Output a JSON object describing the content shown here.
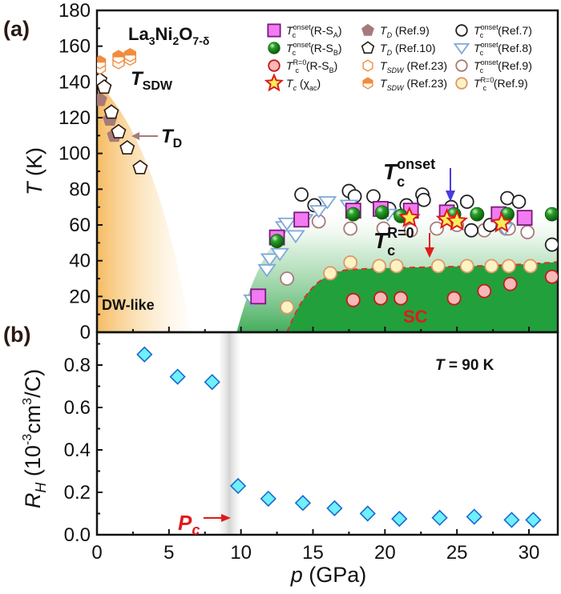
{
  "chart_data": [
    {
      "panel": "(a)",
      "type": "scatter",
      "title": "La3Ni2O7-δ",
      "xlabel": "p (GPa)",
      "ylabel": "T (K)",
      "xlim": [
        0,
        32
      ],
      "ylim": [
        0,
        180
      ],
      "yticks": [
        0,
        20,
        40,
        60,
        80,
        100,
        120,
        140,
        160,
        180
      ],
      "xticks_minor": [
        0,
        5,
        10,
        15,
        20,
        25,
        30
      ],
      "grid": false,
      "legend_placement": "top-right",
      "annotations": {
        "compound": "La",
        "compound_sub1": "3",
        "compound_mid": "Ni",
        "compound_sub2": "2",
        "compound_mid2": "O",
        "compound_sub3": "7-δ",
        "tsdw": "T",
        "tsdw_sub": "SDW",
        "td": "T",
        "td_sub": "D",
        "tc_onset": "T",
        "tc_onset_sub": "c",
        "tc_onset_sup": "onset",
        "tc_r0": "T",
        "tc_r0_sub": "c",
        "tc_r0_sup": "R=0",
        "dw_like": "DW-like",
        "sc": "SC"
      },
      "regions": [
        {
          "name": "DW-like",
          "color": "#f7c36b"
        },
        {
          "name": "SC-onset",
          "color": "#2ea043"
        },
        {
          "name": "SC",
          "color": "#22a03c"
        }
      ],
      "series": [
        {
          "name": "Tc onset (R-SA)",
          "marker": "square",
          "fill": "#f27af2",
          "stroke": "#7a1a7a",
          "points": [
            [
              11.2,
              20
            ],
            [
              12.5,
              53
            ],
            [
              14.2,
              63
            ],
            [
              17.8,
              68
            ],
            [
              19.7,
              69
            ],
            [
              21.8,
              68
            ],
            [
              24.3,
              67
            ],
            [
              27.9,
              66
            ],
            [
              29.7,
              64
            ]
          ]
        },
        {
          "name": "Tc onset (R-SB)",
          "marker": "ball",
          "fill": "#1a8a1a",
          "stroke": "#0d5a0d",
          "points": [
            [
              12.5,
              51
            ],
            [
              17.8,
              66
            ],
            [
              19.8,
              67
            ],
            [
              21.1,
              65
            ],
            [
              24.8,
              66
            ],
            [
              26.4,
              66
            ],
            [
              28.5,
              66
            ],
            [
              31.6,
              66
            ]
          ]
        },
        {
          "name": "Tc R=0 (R-SB)",
          "marker": "circle",
          "fill": "#f7b8b8",
          "stroke": "#c21a1a",
          "points": [
            [
              17.8,
              18
            ],
            [
              19.7,
              19
            ],
            [
              21.1,
              19
            ],
            [
              24.8,
              19
            ],
            [
              26.9,
              23
            ],
            [
              28.7,
              27
            ],
            [
              31.6,
              31
            ]
          ]
        },
        {
          "name": "Tc (χac)",
          "marker": "star",
          "fill": "#f5ef5a",
          "stroke": "#e01a1a",
          "points": [
            [
              21.7,
              64
            ],
            [
              24.3,
              63
            ],
            [
              25.0,
              62
            ],
            [
              28.1,
              61
            ]
          ]
        },
        {
          "name": "TD (Ref.9)",
          "marker": "pentagon-filled",
          "fill": "#a77a78",
          "stroke": "#a77a78",
          "points": [
            [
              0.2,
              130
            ],
            [
              0.9,
              119
            ],
            [
              1.2,
              110
            ]
          ]
        },
        {
          "name": "TD (Ref.10)",
          "marker": "pentagon-open",
          "fill": "#ffffff",
          "stroke": "#2b1a10",
          "points": [
            [
              0.2,
              141
            ],
            [
              0.5,
              137
            ],
            [
              1.0,
              123
            ],
            [
              1.5,
              112
            ],
            [
              2.1,
              103
            ],
            [
              3.0,
              92
            ]
          ]
        },
        {
          "name": "TSDW (Ref.23) open",
          "marker": "hexagon-open",
          "fill": "#ffffff",
          "stroke": "#f28c3c",
          "points": [
            [
              0.2,
              148
            ],
            [
              1.5,
              151
            ],
            [
              2.3,
              153
            ]
          ]
        },
        {
          "name": "TSDW (Ref.23) half",
          "marker": "hexagon-half",
          "fill": "#f28c3c",
          "stroke": "#f28c3c",
          "points": [
            [
              0.2,
              151
            ],
            [
              1.5,
              154
            ],
            [
              2.3,
              155
            ]
          ]
        },
        {
          "name": "Tc onset (Ref.7)",
          "marker": "circle",
          "fill": "#ffffff",
          "stroke": "#222222",
          "points": [
            [
              14.2,
              77
            ],
            [
              15.1,
              71
            ],
            [
              17.5,
              79
            ],
            [
              17.9,
              76
            ],
            [
              19.2,
              76
            ],
            [
              20.3,
              69
            ],
            [
              21.5,
              71
            ],
            [
              22.6,
              77
            ],
            [
              22.7,
              74
            ],
            [
              24.6,
              70
            ],
            [
              25.7,
              73
            ],
            [
              26.0,
              57
            ],
            [
              27.3,
              60
            ],
            [
              28.5,
              75
            ],
            [
              29.3,
              73
            ],
            [
              31.6,
              49
            ]
          ]
        },
        {
          "name": "Tc onset (Ref.8)",
          "marker": "triangle-down",
          "fill": "#ffffff",
          "stroke": "#7fa8d8",
          "points": [
            [
              10.8,
              18
            ],
            [
              11.8,
              35
            ],
            [
              12.0,
              41
            ],
            [
              12.7,
              44
            ],
            [
              13.8,
              54
            ],
            [
              13.0,
              59
            ],
            [
              13.2,
              61
            ],
            [
              14.4,
              63
            ],
            [
              15.4,
              68
            ],
            [
              16.0,
              73
            ],
            [
              17.5,
              71
            ],
            [
              20.2,
              66
            ],
            [
              28.3,
              58
            ]
          ]
        },
        {
          "name": "Tc onset (Ref.9)",
          "marker": "circle",
          "fill": "#ffffff",
          "stroke": "#a87a78",
          "points": [
            [
              13.2,
              30
            ],
            [
              15.4,
              62
            ],
            [
              17.6,
              58
            ],
            [
              19.9,
              58
            ],
            [
              21.8,
              57
            ],
            [
              23.6,
              58
            ],
            [
              25.0,
              60
            ],
            [
              26.9,
              57
            ],
            [
              28.4,
              58
            ],
            [
              29.9,
              56
            ],
            [
              28.6,
              58
            ]
          ]
        },
        {
          "name": "Tc R=0 (Ref.9)",
          "marker": "circle",
          "fill": "#fdf3c2",
          "stroke": "#e0956a",
          "points": [
            [
              13.2,
              14
            ],
            [
              16.2,
              33
            ],
            [
              17.6,
              39
            ],
            [
              19.6,
              37
            ],
            [
              20.8,
              37
            ],
            [
              23.7,
              37
            ],
            [
              25.7,
              37
            ],
            [
              27.4,
              37
            ],
            [
              28.6,
              37
            ],
            [
              30.1,
              37
            ]
          ]
        }
      ],
      "legend": [
        {
          "main": "T",
          "sub": "c",
          "sup": "onset",
          "tail": "(R-S",
          "tail_sub": "A",
          "tail_end": ")"
        },
        {
          "main": "T",
          "sub": "c",
          "sup": "onset",
          "tail": "(R-S",
          "tail_sub": "B",
          "tail_end": ")"
        },
        {
          "main": "T",
          "sub": "c",
          "sup": "R=0",
          "tail": "(R-S",
          "tail_sub": "B",
          "tail_end": ")"
        },
        {
          "main": "T",
          "sub": "c",
          "sup": "",
          "tail": " (χ",
          "tail_sub": "ac",
          "tail_end": ")"
        },
        {
          "main": "T",
          "sub": "D",
          "sup": "",
          "tail": " (Ref.9)",
          "tail_sub": "",
          "tail_end": ""
        },
        {
          "main": "T",
          "sub": "D",
          "sup": "",
          "tail": " (Ref.10)",
          "tail_sub": "",
          "tail_end": ""
        },
        {
          "main": "T",
          "sub": "SDW",
          "sup": "",
          "tail": " (Ref.23)",
          "tail_sub": "",
          "tail_end": ""
        },
        {
          "main": "T",
          "sub": "SDW",
          "sup": "",
          "tail": " (Ref.23)",
          "tail_sub": "",
          "tail_end": ""
        },
        {
          "main": "T",
          "sub": "c",
          "sup": "onset",
          "tail": "(Ref.7)",
          "tail_sub": "",
          "tail_end": ""
        },
        {
          "main": "T",
          "sub": "c",
          "sup": "onset",
          "tail": "(Ref.8)",
          "tail_sub": "",
          "tail_end": ""
        },
        {
          "main": "T",
          "sub": "c",
          "sup": "onset",
          "tail": "(Ref.9)",
          "tail_sub": "",
          "tail_end": ""
        },
        {
          "main": "T",
          "sub": "c",
          "sup": "R=0",
          "tail": "(Ref.9)",
          "tail_sub": "",
          "tail_end": ""
        }
      ]
    },
    {
      "panel": "(b)",
      "type": "scatter",
      "xlabel": "p (GPa)",
      "ylabel": "R_H (10^-3 cm^3/C)",
      "xlim": [
        0,
        32
      ],
      "ylim": [
        0,
        0.95
      ],
      "xticks": [
        0,
        5,
        10,
        15,
        20,
        25,
        30
      ],
      "yticks": [
        0.0,
        0.2,
        0.4,
        0.6,
        0.8
      ],
      "grid": false,
      "annotations": {
        "temperature": "T = 90 K",
        "pc": "P",
        "pc_sub": "c",
        "pc_position_gpa": 9.2
      },
      "series": [
        {
          "name": "R_H",
          "marker": "diamond",
          "fill": "#6ff0fa",
          "stroke": "#1a6ad0",
          "points": [
            [
              3.3,
              0.85
            ],
            [
              5.6,
              0.745
            ],
            [
              8.0,
              0.72
            ],
            [
              9.8,
              0.23
            ],
            [
              11.9,
              0.17
            ],
            [
              14.3,
              0.15
            ],
            [
              16.5,
              0.125
            ],
            [
              18.8,
              0.1
            ],
            [
              21.0,
              0.075
            ],
            [
              23.8,
              0.08
            ],
            [
              26.2,
              0.085
            ],
            [
              28.8,
              0.07
            ],
            [
              30.3,
              0.07
            ]
          ]
        }
      ]
    }
  ],
  "labels": {
    "panel_a": "(a)",
    "panel_b": "(b)",
    "y_a_main": "T",
    "y_a_unit": " (K)",
    "y_b_main": "R",
    "y_b_sub": "H",
    "y_b_unit": " (10",
    "y_b_exp": "-3",
    "y_b_unit2": "cm",
    "y_b_exp2": "3",
    "y_b_unit3": "/C)",
    "x_main": "p",
    "x_unit": " (GPa)"
  }
}
